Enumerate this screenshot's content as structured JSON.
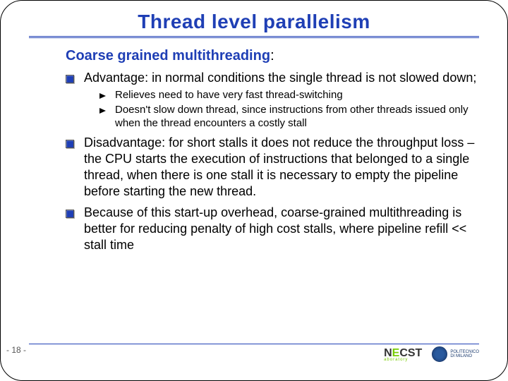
{
  "title": "Thread level parallelism",
  "subtitle": "Coarse grained multithreading",
  "subtitle_colon": ":",
  "main_bullets": [
    {
      "text": "Advantage: in normal conditions the single thread is not slowed down;",
      "sub": [
        "Relieves need to have very fast thread-switching",
        "Doesn't slow down thread, since instructions from other threads issued only when the thread encounters a costly stall"
      ]
    },
    {
      "text": "Disadvantage: for short stalls it does not reduce the throughput loss – the CPU starts the execution of instructions that belonged to a single thread, when there is one stall it is necessary to empty the pipeline before starting the new thread.",
      "sub": []
    },
    {
      "text": "Because of this start-up overhead, coarse-grained multithreading is better for reducing penalty of high cost stalls, where pipeline refill << stall time",
      "sub": []
    }
  ],
  "page": "- 18 -",
  "logo_necst_n": "N",
  "logo_necst_e": "E",
  "logo_necst_rest": "CST",
  "logo_necst_sub": "aboratory",
  "logo_polimi_l1": "POLITECNICO",
  "logo_polimi_l2": "DI MILANO",
  "colors": {
    "accent": "#1f3fb5",
    "text": "#000000",
    "necst_green": "#77cc00",
    "polimi_blue": "#1a3a6e",
    "bg": "#ffffff"
  },
  "typography": {
    "title_pt": 28,
    "subtitle_pt": 20,
    "body_pt": 18,
    "sub_pt": 15,
    "footer_pt": 12
  }
}
